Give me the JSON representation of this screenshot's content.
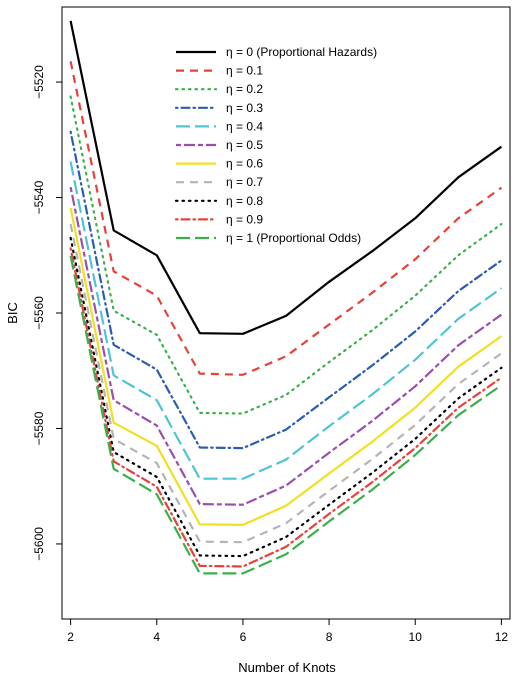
{
  "chart_data": {
    "type": "line",
    "title": "",
    "xlabel": "Number of Knots",
    "ylabel": "BIC",
    "xlim": [
      1.8,
      12.2
    ],
    "ylim": [
      -5613,
      -5507
    ],
    "x_ticks": [
      2,
      4,
      6,
      8,
      10,
      12
    ],
    "x_tick_labels": [
      "2",
      "4",
      "6",
      "8",
      "10",
      "12"
    ],
    "y_ticks": [
      -5520,
      -5540,
      -5560,
      -5580,
      -5600
    ],
    "y_tick_labels": [
      "−5520",
      "−5540",
      "−5560",
      "−5580",
      "−5600"
    ],
    "grid": false,
    "legend_position": "top-right",
    "x": [
      2,
      3,
      4,
      5,
      6,
      7,
      8,
      9,
      10,
      11,
      12
    ],
    "series": [
      {
        "name": "η = 0 (Proportional Hazards)",
        "color": "#000000",
        "dash": "solid",
        "values": [
          -5509.4,
          -5545.7,
          -5550.0,
          -5563.5,
          -5563.6,
          -5560.5,
          -5554.6,
          -5549.3,
          -5543.6,
          -5536.5,
          -5531.2
        ]
      },
      {
        "name": "η = 0.1",
        "color": "#e8403a",
        "dash": "dash",
        "values": [
          -5516.4,
          -5552.8,
          -5557.0,
          -5570.5,
          -5570.7,
          -5567.5,
          -5562.0,
          -5556.5,
          -5550.7,
          -5543.6,
          -5538.3
        ]
      },
      {
        "name": "η = 0.2",
        "color": "#3ab04a",
        "dash": "dot",
        "values": [
          -5522.5,
          -5559.6,
          -5563.8,
          -5577.3,
          -5577.4,
          -5574.2,
          -5568.5,
          -5563.0,
          -5557.0,
          -5550.0,
          -5544.6
        ]
      },
      {
        "name": "η = 0.3",
        "color": "#2a5db0",
        "dash": "dashdot",
        "values": [
          -5528.6,
          -5565.5,
          -5569.8,
          -5583.3,
          -5583.4,
          -5580.2,
          -5574.6,
          -5569.1,
          -5563.2,
          -5556.2,
          -5550.9
        ]
      },
      {
        "name": "η = 0.4",
        "color": "#4ec4d4",
        "dash": "longdash",
        "values": [
          -5533.8,
          -5570.8,
          -5575.1,
          -5588.7,
          -5588.7,
          -5585.4,
          -5579.6,
          -5574.1,
          -5568.1,
          -5561.0,
          -5555.7
        ]
      },
      {
        "name": "η = 0.5",
        "color": "#9a4fb0",
        "dash": "twodash",
        "values": [
          -5538.2,
          -5575.1,
          -5579.5,
          -5593.1,
          -5593.2,
          -5589.9,
          -5584.2,
          -5578.7,
          -5572.7,
          -5565.6,
          -5560.3
        ]
      },
      {
        "name": "η = 0.6",
        "color": "#f0e020",
        "dash": "solid",
        "values": [
          -5541.8,
          -5579.0,
          -5583.0,
          -5596.6,
          -5596.7,
          -5593.4,
          -5587.8,
          -5582.3,
          -5576.4,
          -5569.3,
          -5564.0
        ]
      },
      {
        "name": "η = 0.7",
        "color": "#b4b4b4",
        "dash": "dash",
        "values": [
          -5544.6,
          -5581.8,
          -5586.0,
          -5599.6,
          -5599.7,
          -5596.4,
          -5590.8,
          -5585.3,
          -5579.4,
          -5572.3,
          -5567.0
        ]
      },
      {
        "name": "η = 0.8",
        "color": "#000000",
        "dash": "dot",
        "values": [
          -5547.0,
          -5584.1,
          -5588.4,
          -5602.0,
          -5602.1,
          -5598.8,
          -5593.2,
          -5587.7,
          -5581.8,
          -5574.8,
          -5569.5
        ]
      },
      {
        "name": "η = 0.9",
        "color": "#e8403a",
        "dash": "dashdot",
        "values": [
          -5548.8,
          -5585.7,
          -5590.1,
          -5603.8,
          -5603.9,
          -5600.5,
          -5594.8,
          -5589.3,
          -5583.4,
          -5576.4,
          -5571.2
        ]
      },
      {
        "name": "η = 1 (Proportional Odds)",
        "color": "#3ab04a",
        "dash": "longdash",
        "values": [
          -5550.1,
          -5587.0,
          -5591.4,
          -5605.1,
          -5605.1,
          -5601.8,
          -5596.1,
          -5590.6,
          -5584.6,
          -5577.7,
          -5572.5
        ]
      }
    ]
  }
}
